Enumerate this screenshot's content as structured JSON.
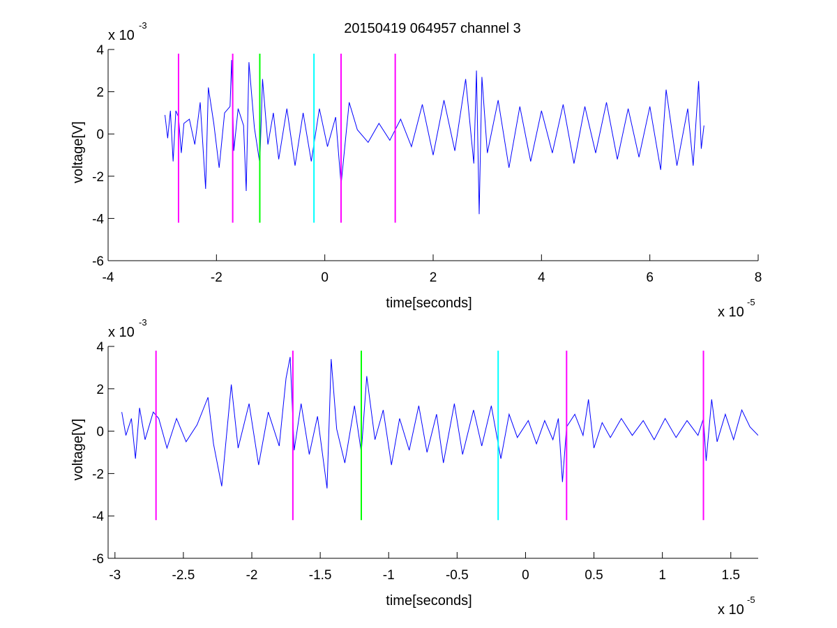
{
  "figure": {
    "title": "20150419 064957 channel 3"
  },
  "chart_data": [
    {
      "type": "line",
      "xlabel": "time[seconds]",
      "ylabel": "voltage[V]",
      "x_exponent_label": "x 10",
      "x_exponent": "-5",
      "y_exponent_label": "x 10",
      "y_exponent": "-3",
      "xlim": [
        -4,
        8
      ],
      "ylim": [
        -6,
        4
      ],
      "xticks": [
        "-4",
        "-2",
        "0",
        "2",
        "4",
        "6",
        "8"
      ],
      "yticks": [
        "4",
        "2",
        "0",
        "-2",
        "-4",
        "-6"
      ],
      "xtick_values": [
        -4,
        -2,
        0,
        2,
        4,
        6,
        8
      ],
      "ytick_values": [
        4,
        2,
        0,
        -2,
        -4,
        -6
      ],
      "grid": false,
      "series": [
        {
          "color": "#0000ff",
          "x_range": [
            -2.95,
            7.0
          ],
          "points": [
            [
              -2.95,
              0.9
            ],
            [
              -2.9,
              -0.2
            ],
            [
              -2.85,
              1.1
            ],
            [
              -2.8,
              -1.3
            ],
            [
              -2.75,
              1.1
            ],
            [
              -2.7,
              0.8
            ],
            [
              -2.65,
              -0.9
            ],
            [
              -2.6,
              0.5
            ],
            [
              -2.5,
              0.7
            ],
            [
              -2.4,
              -0.5
            ],
            [
              -2.3,
              1.5
            ],
            [
              -2.2,
              -2.6
            ],
            [
              -2.15,
              2.2
            ],
            [
              -2.05,
              0.5
            ],
            [
              -1.95,
              -1.6
            ],
            [
              -1.85,
              1.0
            ],
            [
              -1.75,
              1.3
            ],
            [
              -1.72,
              3.5
            ],
            [
              -1.68,
              -0.8
            ],
            [
              -1.6,
              1.2
            ],
            [
              -1.5,
              0.4
            ],
            [
              -1.45,
              -2.7
            ],
            [
              -1.4,
              3.4
            ],
            [
              -1.3,
              0.3
            ],
            [
              -1.2,
              -1.4
            ],
            [
              -1.15,
              2.6
            ],
            [
              -1.05,
              -0.5
            ],
            [
              -0.95,
              1.0
            ],
            [
              -0.85,
              -1.2
            ],
            [
              -0.7,
              1.2
            ],
            [
              -0.55,
              -1.5
            ],
            [
              -0.4,
              1.0
            ],
            [
              -0.25,
              -1.3
            ],
            [
              -0.1,
              1.2
            ],
            [
              0.05,
              -0.6
            ],
            [
              0.2,
              0.8
            ],
            [
              0.3,
              -2.4
            ],
            [
              0.45,
              1.5
            ],
            [
              0.6,
              0.2
            ],
            [
              0.8,
              -0.4
            ],
            [
              1.0,
              0.5
            ],
            [
              1.2,
              -0.3
            ],
            [
              1.4,
              0.7
            ],
            [
              1.6,
              -0.6
            ],
            [
              1.8,
              1.4
            ],
            [
              2.0,
              -1.0
            ],
            [
              2.2,
              1.6
            ],
            [
              2.4,
              -0.8
            ],
            [
              2.6,
              2.6
            ],
            [
              2.75,
              -1.4
            ],
            [
              2.8,
              3.0
            ],
            [
              2.85,
              -3.8
            ],
            [
              2.9,
              2.7
            ],
            [
              3.0,
              -0.9
            ],
            [
              3.2,
              1.6
            ],
            [
              3.4,
              -1.6
            ],
            [
              3.6,
              1.3
            ],
            [
              3.8,
              -1.3
            ],
            [
              4.0,
              1.1
            ],
            [
              4.2,
              -0.9
            ],
            [
              4.4,
              1.4
            ],
            [
              4.6,
              -1.4
            ],
            [
              4.8,
              1.3
            ],
            [
              5.0,
              -0.9
            ],
            [
              5.2,
              1.5
            ],
            [
              5.4,
              -1.2
            ],
            [
              5.6,
              1.2
            ],
            [
              5.8,
              -1.1
            ],
            [
              6.0,
              1.3
            ],
            [
              6.2,
              -1.7
            ],
            [
              6.3,
              2.1
            ],
            [
              6.5,
              -1.5
            ],
            [
              6.7,
              1.2
            ],
            [
              6.8,
              -1.5
            ],
            [
              6.9,
              2.5
            ],
            [
              6.95,
              -0.7
            ],
            [
              7.0,
              0.4
            ]
          ]
        }
      ],
      "markers": [
        {
          "x": -2.7,
          "color": "#ff00ff",
          "y_range": [
            -4.2,
            3.8
          ]
        },
        {
          "x": -1.7,
          "color": "#ff00ff",
          "y_range": [
            -4.2,
            3.8
          ]
        },
        {
          "x": -1.2,
          "color": "#00ff00",
          "y_range": [
            -4.2,
            3.8
          ]
        },
        {
          "x": -0.2,
          "color": "#00ffff",
          "y_range": [
            -4.2,
            3.8
          ]
        },
        {
          "x": 0.3,
          "color": "#ff00ff",
          "y_range": [
            -4.2,
            3.8
          ]
        },
        {
          "x": 1.3,
          "color": "#ff00ff",
          "y_range": [
            -4.2,
            3.8
          ]
        }
      ]
    },
    {
      "type": "line",
      "xlabel": "time[seconds]",
      "ylabel": "voltage[V]",
      "x_exponent_label": "x 10",
      "x_exponent": "-5",
      "y_exponent_label": "x 10",
      "y_exponent": "-3",
      "xlim": [
        -3.05,
        1.7
      ],
      "ylim": [
        -6,
        4
      ],
      "xticks": [
        "-3",
        "-2.5",
        "-2",
        "-1.5",
        "-1",
        "-0.5",
        "0",
        "0.5",
        "1",
        "1.5"
      ],
      "yticks": [
        "4",
        "2",
        "0",
        "-2",
        "-4",
        "-6"
      ],
      "xtick_values": [
        -3,
        -2.5,
        -2,
        -1.5,
        -1,
        -0.5,
        0,
        0.5,
        1,
        1.5
      ],
      "ytick_values": [
        4,
        2,
        0,
        -2,
        -4,
        -6
      ],
      "grid": false,
      "series": [
        {
          "color": "#0000ff",
          "x_range": [
            -2.95,
            1.7
          ],
          "points": [
            [
              -2.95,
              0.9
            ],
            [
              -2.92,
              -0.2
            ],
            [
              -2.88,
              0.6
            ],
            [
              -2.85,
              -1.3
            ],
            [
              -2.82,
              1.1
            ],
            [
              -2.78,
              -0.4
            ],
            [
              -2.72,
              0.9
            ],
            [
              -2.68,
              0.6
            ],
            [
              -2.62,
              -0.8
            ],
            [
              -2.55,
              0.6
            ],
            [
              -2.48,
              -0.5
            ],
            [
              -2.4,
              0.3
            ],
            [
              -2.32,
              1.6
            ],
            [
              -2.28,
              -0.6
            ],
            [
              -2.22,
              -2.6
            ],
            [
              -2.15,
              2.2
            ],
            [
              -2.1,
              -0.8
            ],
            [
              -2.02,
              1.3
            ],
            [
              -1.95,
              -1.6
            ],
            [
              -1.88,
              0.9
            ],
            [
              -1.8,
              -0.7
            ],
            [
              -1.75,
              2.5
            ],
            [
              -1.72,
              3.5
            ],
            [
              -1.69,
              -0.9
            ],
            [
              -1.64,
              1.3
            ],
            [
              -1.58,
              -1.1
            ],
            [
              -1.52,
              0.7
            ],
            [
              -1.45,
              -2.7
            ],
            [
              -1.42,
              3.4
            ],
            [
              -1.38,
              0.1
            ],
            [
              -1.32,
              -1.5
            ],
            [
              -1.25,
              1.2
            ],
            [
              -1.2,
              -1.0
            ],
            [
              -1.16,
              2.6
            ],
            [
              -1.1,
              -0.4
            ],
            [
              -1.04,
              1.0
            ],
            [
              -0.98,
              -1.6
            ],
            [
              -0.92,
              0.6
            ],
            [
              -0.85,
              -0.9
            ],
            [
              -0.78,
              1.2
            ],
            [
              -0.72,
              -1.0
            ],
            [
              -0.65,
              0.8
            ],
            [
              -0.6,
              -1.5
            ],
            [
              -0.52,
              1.3
            ],
            [
              -0.46,
              -1.1
            ],
            [
              -0.38,
              1.0
            ],
            [
              -0.32,
              -0.7
            ],
            [
              -0.25,
              1.2
            ],
            [
              -0.18,
              -1.3
            ],
            [
              -0.12,
              0.8
            ],
            [
              -0.06,
              -0.3
            ],
            [
              0.02,
              0.5
            ],
            [
              0.08,
              -0.6
            ],
            [
              0.14,
              0.5
            ],
            [
              0.2,
              -0.4
            ],
            [
              0.24,
              0.6
            ],
            [
              0.27,
              -2.4
            ],
            [
              0.3,
              0.2
            ],
            [
              0.36,
              0.8
            ],
            [
              0.42,
              -0.2
            ],
            [
              0.46,
              1.5
            ],
            [
              0.5,
              -0.8
            ],
            [
              0.56,
              0.4
            ],
            [
              0.62,
              -0.3
            ],
            [
              0.7,
              0.6
            ],
            [
              0.78,
              -0.2
            ],
            [
              0.86,
              0.5
            ],
            [
              0.94,
              -0.4
            ],
            [
              1.02,
              0.6
            ],
            [
              1.1,
              -0.3
            ],
            [
              1.18,
              0.5
            ],
            [
              1.26,
              -0.2
            ],
            [
              1.3,
              0.6
            ],
            [
              1.32,
              -1.4
            ],
            [
              1.36,
              1.5
            ],
            [
              1.4,
              -0.5
            ],
            [
              1.46,
              0.8
            ],
            [
              1.52,
              -0.4
            ],
            [
              1.58,
              1.0
            ],
            [
              1.64,
              0.2
            ],
            [
              1.7,
              -0.2
            ]
          ]
        }
      ],
      "markers": [
        {
          "x": -2.7,
          "color": "#ff00ff",
          "y_range": [
            -4.2,
            3.8
          ]
        },
        {
          "x": -1.7,
          "color": "#ff00ff",
          "y_range": [
            -4.2,
            3.8
          ]
        },
        {
          "x": -1.2,
          "color": "#00ff00",
          "y_range": [
            -4.2,
            3.8
          ]
        },
        {
          "x": -0.2,
          "color": "#00ffff",
          "y_range": [
            -4.2,
            3.8
          ]
        },
        {
          "x": 0.3,
          "color": "#ff00ff",
          "y_range": [
            -4.2,
            3.8
          ]
        },
        {
          "x": 1.3,
          "color": "#ff00ff",
          "y_range": [
            -4.2,
            3.8
          ]
        }
      ]
    }
  ]
}
